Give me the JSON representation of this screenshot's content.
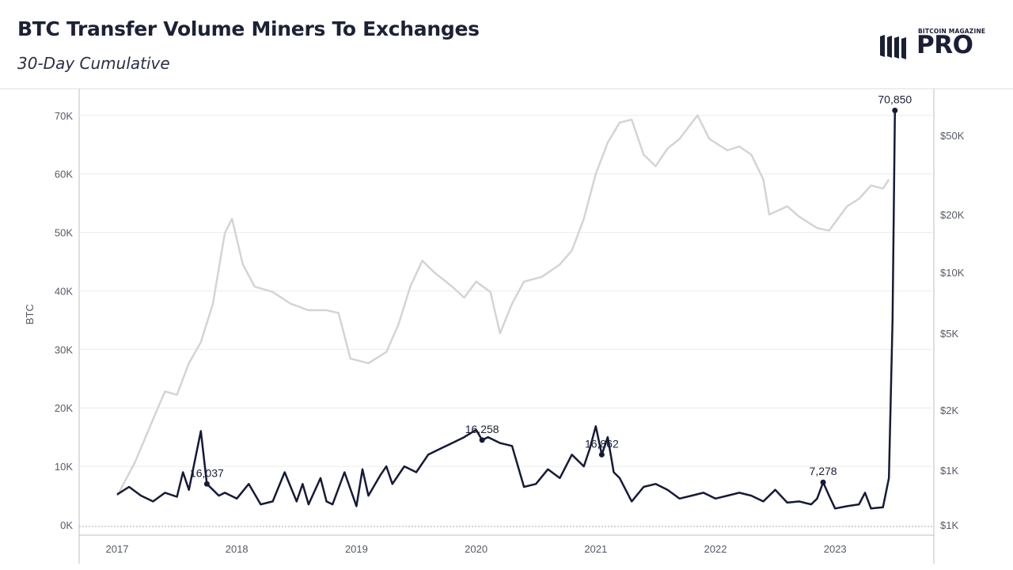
{
  "header": {
    "title": "BTC Transfer Volume Miners To Exchanges",
    "subtitle": "30-Day Cumulative"
  },
  "logo": {
    "small_text": "BITCOIN MAGAZINE",
    "big_text": "PRO"
  },
  "colors": {
    "volume_line": "#151a38",
    "price_line": "#d4d4d4",
    "grid": "#ececec",
    "text": "#1c2235"
  },
  "chart_data": {
    "type": "line",
    "title": "BTC Transfer Volume Miners To Exchanges",
    "subtitle": "30-Day Cumulative",
    "ylabel": "BTC",
    "y_left_ticks": [
      "0K",
      "10K",
      "20K",
      "30K",
      "40K",
      "50K",
      "60K",
      "70K"
    ],
    "y_right_ticks": [
      "$1K",
      "$1K",
      "$2K",
      "$5K",
      "$10K",
      "$20K",
      "$50K"
    ],
    "x_ticks": [
      "2017",
      "2018",
      "2019",
      "2020",
      "2021",
      "2022",
      "2023"
    ],
    "ylim": [
      0,
      70850
    ],
    "grid": true,
    "series": [
      {
        "role": "volume",
        "axis": "left",
        "x": [
          2017.0,
          2017.1,
          2017.2,
          2017.3,
          2017.4,
          2017.5,
          2017.55,
          2017.6,
          2017.7,
          2017.75,
          2017.8,
          2017.85,
          2017.9,
          2018.0,
          2018.1,
          2018.2,
          2018.3,
          2018.4,
          2018.5,
          2018.55,
          2018.6,
          2018.7,
          2018.75,
          2018.8,
          2018.9,
          2019.0,
          2019.05,
          2019.1,
          2019.2,
          2019.25,
          2019.3,
          2019.4,
          2019.5,
          2019.6,
          2019.7,
          2019.8,
          2019.9,
          2020.0,
          2020.05,
          2020.1,
          2020.2,
          2020.3,
          2020.4,
          2020.5,
          2020.6,
          2020.7,
          2020.8,
          2020.9,
          2020.95,
          2021.0,
          2021.05,
          2021.1,
          2021.15,
          2021.2,
          2021.3,
          2021.4,
          2021.5,
          2021.6,
          2021.7,
          2021.8,
          2021.9,
          2022.0,
          2022.1,
          2022.2,
          2022.3,
          2022.4,
          2022.5,
          2022.6,
          2022.7,
          2022.8,
          2022.85,
          2022.9,
          2022.95,
          2023.0,
          2023.1,
          2023.2,
          2023.25,
          2023.3,
          2023.4,
          2023.45,
          2023.48,
          2023.5
        ],
        "values": [
          5200,
          6500,
          5000,
          4000,
          5500,
          4800,
          9000,
          6000,
          16037,
          7000,
          6000,
          5000,
          5500,
          4500,
          7000,
          3500,
          4000,
          9000,
          4000,
          7000,
          3500,
          8000,
          4000,
          3500,
          9000,
          3200,
          9500,
          5000,
          8500,
          10000,
          7000,
          10000,
          9000,
          12000,
          13000,
          14000,
          15000,
          16258,
          14500,
          15000,
          14000,
          13500,
          6500,
          7000,
          9500,
          8000,
          12000,
          10000,
          13000,
          16862,
          12000,
          15000,
          9000,
          8000,
          4000,
          6500,
          7000,
          6000,
          4500,
          5000,
          5500,
          4500,
          5000,
          5500,
          5000,
          4000,
          6000,
          3800,
          4000,
          3500,
          4500,
          7278,
          5000,
          2800,
          3200,
          3500,
          5500,
          2800,
          3000,
          8000,
          35000,
          70850
        ],
        "annotations": [
          {
            "x": 2017.75,
            "value": "16,037"
          },
          {
            "x": 2020.05,
            "value": "16,258"
          },
          {
            "x": 2021.05,
            "value": "16,862"
          },
          {
            "x": 2022.9,
            "value": "7,278"
          },
          {
            "x": 2023.5,
            "value": "70,850"
          }
        ]
      },
      {
        "role": "btc_price",
        "axis": "right",
        "x": [
          2017.0,
          2017.15,
          2017.3,
          2017.4,
          2017.5,
          2017.6,
          2017.7,
          2017.8,
          2017.9,
          2017.96,
          2018.05,
          2018.15,
          2018.3,
          2018.45,
          2018.6,
          2018.75,
          2018.85,
          2018.95,
          2019.1,
          2019.25,
          2019.35,
          2019.45,
          2019.55,
          2019.65,
          2019.8,
          2019.9,
          2020.0,
          2020.12,
          2020.2,
          2020.3,
          2020.4,
          2020.55,
          2020.7,
          2020.8,
          2020.9,
          2021.0,
          2021.1,
          2021.2,
          2021.3,
          2021.4,
          2021.5,
          2021.6,
          2021.7,
          2021.85,
          2021.95,
          2022.1,
          2022.2,
          2022.3,
          2022.4,
          2022.45,
          2022.6,
          2022.7,
          2022.85,
          2022.95,
          2023.1,
          2023.2,
          2023.3,
          2023.4,
          2023.45
        ],
        "values": [
          900,
          1100,
          1800,
          2500,
          2400,
          3500,
          4500,
          7000,
          16000,
          19000,
          11000,
          8500,
          8000,
          7000,
          6500,
          6500,
          6300,
          3700,
          3500,
          4000,
          5500,
          8500,
          11500,
          10000,
          8500,
          7500,
          9000,
          8000,
          5000,
          7000,
          9000,
          9500,
          11000,
          13000,
          19000,
          32000,
          46000,
          58000,
          60000,
          40000,
          35000,
          43000,
          48000,
          63000,
          48000,
          42000,
          44000,
          40000,
          30000,
          20000,
          22000,
          19500,
          17000,
          16500,
          22000,
          24000,
          28000,
          27000,
          30000
        ]
      }
    ]
  }
}
